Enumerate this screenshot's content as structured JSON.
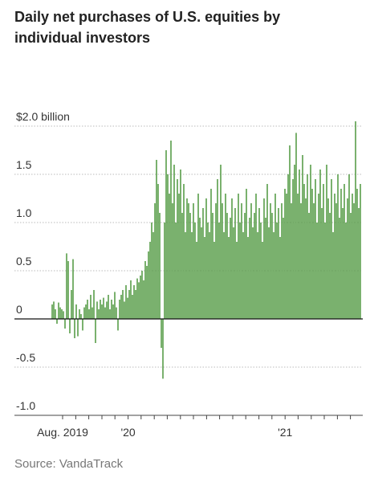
{
  "chart_data": {
    "type": "bar",
    "title": "Daily net purchases of U.S. equities by individual investors",
    "source": "Source: VandaTrack",
    "color": "#5a9e4b",
    "values": [
      0.15,
      0.18,
      0.1,
      -0.05,
      0.17,
      0.12,
      0.1,
      0.08,
      -0.1,
      0.68,
      0.6,
      -0.15,
      0.3,
      0.62,
      -0.2,
      0.15,
      -0.18,
      0.1,
      0.05,
      -0.12,
      0.12,
      0.15,
      0.2,
      0.1,
      0.25,
      0.12,
      0.3,
      -0.25,
      0.18,
      0.1,
      0.2,
      0.15,
      0.22,
      0.12,
      0.18,
      0.25,
      0.1,
      0.2,
      0.15,
      0.28,
      0.12,
      -0.12,
      0.2,
      0.25,
      0.3,
      0.18,
      0.35,
      0.22,
      0.3,
      0.4,
      0.25,
      0.35,
      0.3,
      0.42,
      0.38,
      0.45,
      0.5,
      0.4,
      0.6,
      0.55,
      0.7,
      0.8,
      1.0,
      0.9,
      1.2,
      1.65,
      1.4,
      1.1,
      -0.3,
      -0.62,
      1.0,
      1.75,
      1.5,
      1.3,
      1.85,
      1.2,
      1.6,
      1.0,
      1.45,
      1.3,
      1.55,
      1.1,
      1.4,
      0.9,
      1.25,
      1.2,
      1.1,
      0.9,
      1.2,
      1.0,
      0.8,
      1.3,
      1.05,
      0.95,
      1.15,
      0.85,
      1.25,
      1.0,
      0.9,
      1.35,
      1.1,
      0.8,
      1.2,
      1.45,
      1.0,
      1.6,
      1.2,
      0.9,
      1.3,
      1.1,
      0.85,
      1.05,
      1.25,
      0.95,
      1.15,
      0.8,
      1.3,
      1.0,
      1.2,
      0.9,
      1.1,
      1.35,
      0.85,
      1.05,
      1.2,
      0.95,
      1.1,
      1.3,
      0.9,
      1.15,
      1.0,
      0.8,
      1.25,
      1.05,
      1.4,
      0.95,
      1.2,
      1.1,
      0.9,
      1.3,
      1.0,
      1.15,
      0.85,
      1.2,
      1.05,
      1.35,
      1.3,
      1.5,
      1.8,
      1.2,
      1.45,
      1.6,
      1.93,
      1.3,
      1.55,
      1.2,
      1.7,
      1.4,
      1.25,
      1.5,
      1.1,
      1.6,
      1.35,
      1.2,
      1.45,
      1.0,
      1.3,
      1.55,
      1.15,
      1.4,
      1.0,
      1.6,
      1.25,
      1.1,
      1.45,
      0.9,
      1.3,
      1.2,
      1.5,
      1.05,
      1.35,
      1.15,
      1.4,
      1.0,
      1.25,
      1.5,
      1.1,
      1.3,
      1.2,
      2.05,
      1.35,
      1.15,
      1.4
    ],
    "xlim": [
      -0.5,
      192.5
    ],
    "xticks": [
      {
        "value": 6.5,
        "label": "Aug. 2019"
      },
      {
        "value": 47.3,
        "label": "'20"
      },
      {
        "value": 145.1,
        "label": "'21"
      }
    ],
    "xminorticks": [
      14.7,
      22.8,
      31.0,
      39.1,
      55.4,
      63.6,
      71.7,
      79.9,
      88.0,
      96.2,
      104.3,
      112.5,
      120.6,
      128.8,
      136.9,
      153.2,
      161.4,
      169.5,
      177.7,
      185.8
    ],
    "ylim": [
      -1,
      2.1
    ],
    "yticks": [
      {
        "value": -1,
        "label": "-1.0"
      },
      -0.5,
      0,
      0.5,
      {
        "value": 1,
        "label": "1.0"
      },
      1.5,
      {
        "value": 2,
        "label": "$2.0 billion"
      }
    ],
    "grid": true
  }
}
